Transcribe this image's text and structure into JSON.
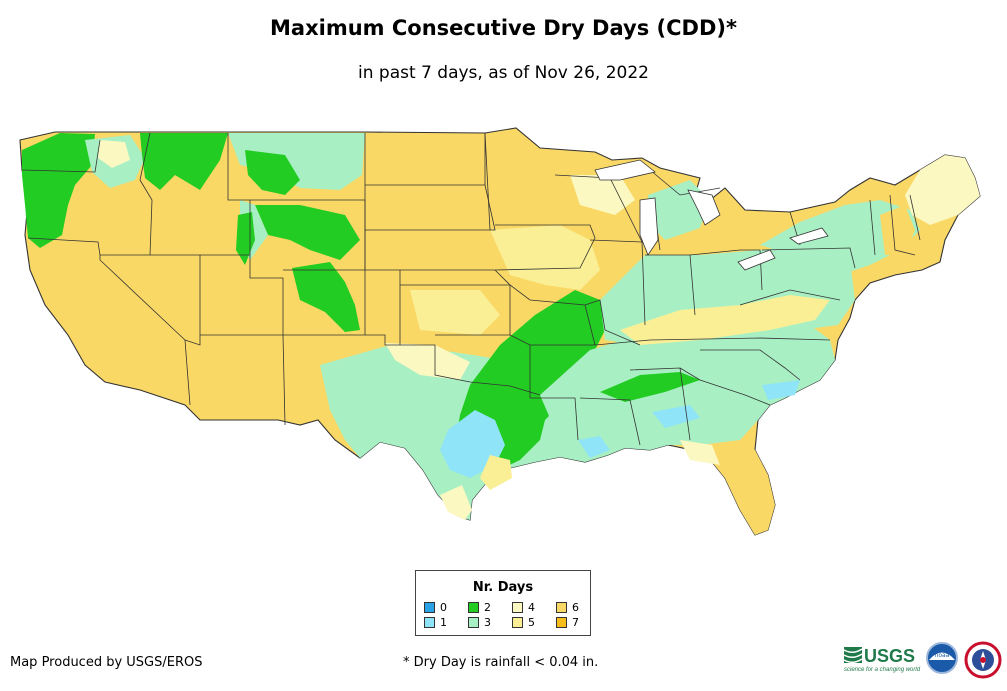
{
  "title": "Maximum Consecutive Dry Days (CDD)*",
  "subtitle": "in past 7 days, as of Nov 26, 2022",
  "legend": {
    "title": "Nr. Days",
    "items": [
      {
        "label": "0",
        "color": "#2aa3e6"
      },
      {
        "label": "1",
        "color": "#8fe4f7"
      },
      {
        "label": "2",
        "color": "#22cc22"
      },
      {
        "label": "3",
        "color": "#a8f0c4"
      },
      {
        "label": "4",
        "color": "#fbf8c2"
      },
      {
        "label": "5",
        "color": "#faef94"
      },
      {
        "label": "6",
        "color": "#fad866"
      },
      {
        "label": "7",
        "color": "#f7bd1b"
      }
    ]
  },
  "credit": "Map Produced by USGS/EROS",
  "footnote": "* Dry Day is rainfall < 0.04 in.",
  "logos": {
    "usgs": "USGS",
    "usgs_tagline": "science for a changing world",
    "noaa": "noaa"
  }
}
